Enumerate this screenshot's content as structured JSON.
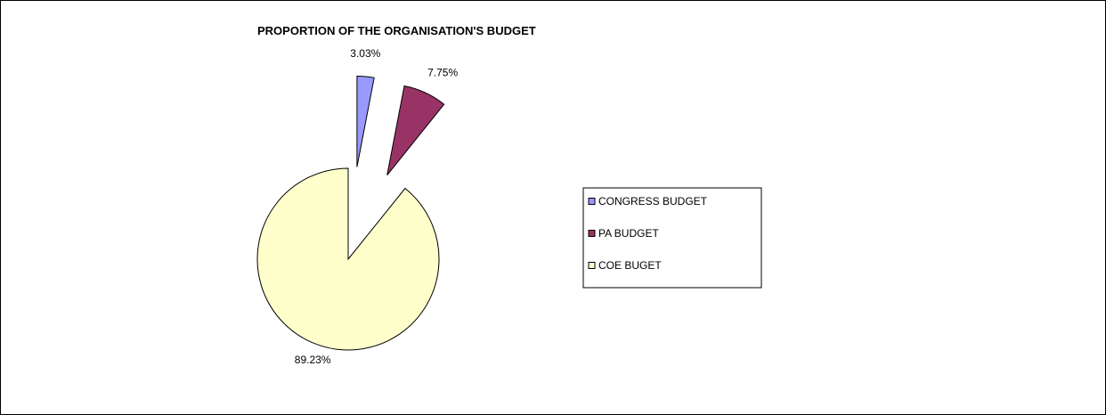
{
  "chart_data": {
    "type": "pie",
    "title": "PROPORTION OF THE ORGANISATION'S BUDGET",
    "slices": [
      {
        "name": "CONGRESS BUDGET",
        "value": 3.03,
        "label": "3.03%",
        "color": "#9999ff",
        "exploded": true
      },
      {
        "name": "PA BUDGET",
        "value": 7.75,
        "label": "7.75%",
        "color": "#993366",
        "exploded": true
      },
      {
        "name": "COE BUGET",
        "value": 89.23,
        "label": "89.23%",
        "color": "#ffffcc",
        "exploded": false
      }
    ],
    "legend_position": "right",
    "start_angle": "top, clockwise"
  }
}
